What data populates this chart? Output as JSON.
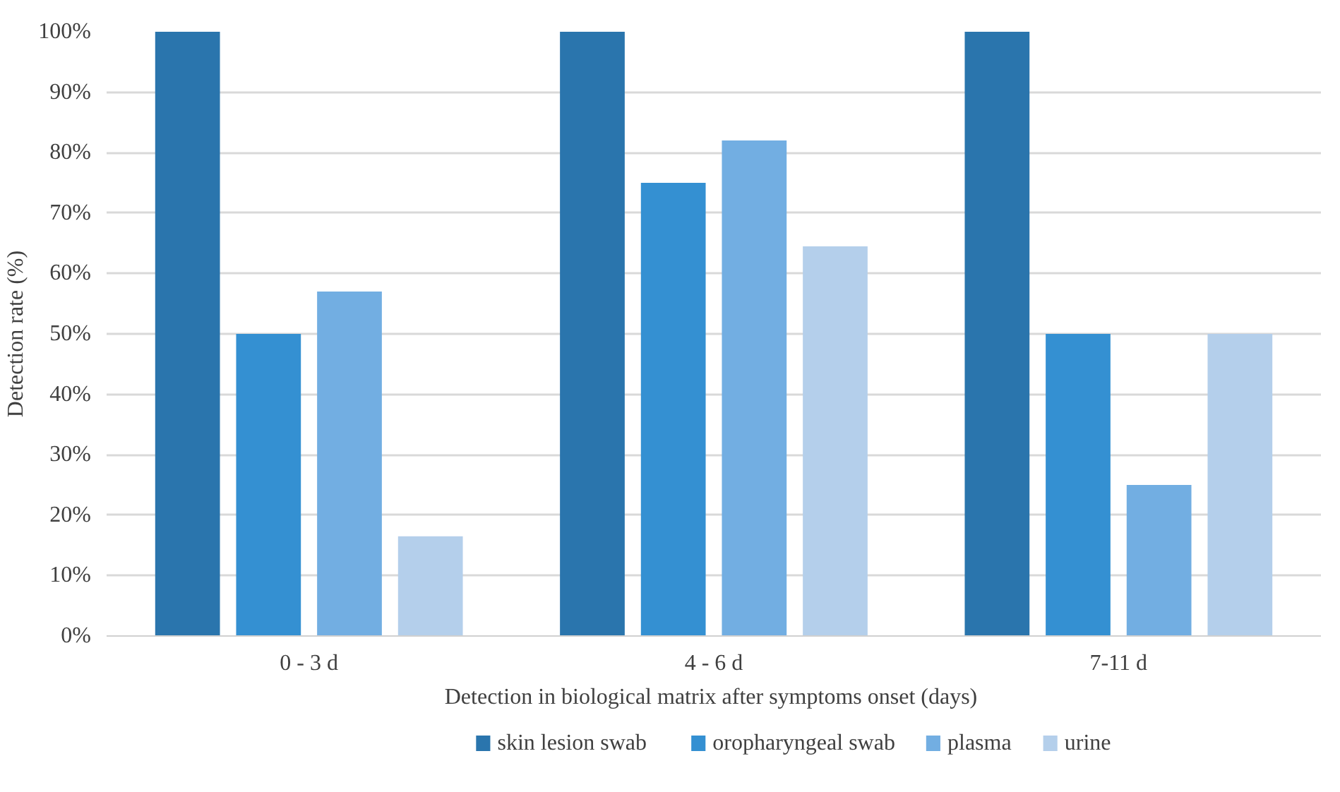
{
  "chart_data": {
    "type": "bar",
    "xlabel": "Detection in biological matrix  after symptoms onset (days)",
    "ylabel": "Detection rate (%)",
    "categories": [
      "0 - 3 d",
      "4 - 6 d",
      "7-11 d"
    ],
    "series": [
      {
        "name": "skin lesion swab",
        "color": "#2a75ad",
        "values": [
          100,
          100,
          100
        ]
      },
      {
        "name": "oropharyngeal swab",
        "color": "#3490d2",
        "values": [
          50,
          75,
          50
        ]
      },
      {
        "name": "plasma",
        "color": "#72aee2",
        "values": [
          57,
          82,
          25
        ]
      },
      {
        "name": "urine",
        "color": "#b4cfeb",
        "values": [
          16.5,
          64.5,
          50
        ]
      }
    ],
    "ylim": [
      0,
      100
    ],
    "yticks": [
      {
        "value": 0,
        "label": "0%"
      },
      {
        "value": 10,
        "label": "10%"
      },
      {
        "value": 20,
        "label": "20%"
      },
      {
        "value": 30,
        "label": "30%"
      },
      {
        "value": 40,
        "label": "40%"
      },
      {
        "value": 50,
        "label": "50%"
      },
      {
        "value": 60,
        "label": "60%"
      },
      {
        "value": 70,
        "label": "70%"
      },
      {
        "value": 80,
        "label": "80%"
      },
      {
        "value": 90,
        "label": "90%"
      },
      {
        "value": 100,
        "label": "100%"
      }
    ],
    "grid": "y",
    "legend": "bottom"
  }
}
